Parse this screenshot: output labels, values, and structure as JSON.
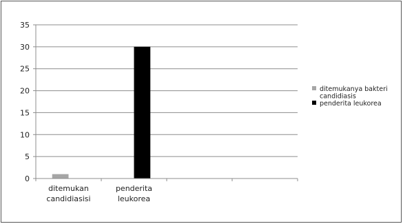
{
  "chart_data": {
    "type": "bar",
    "categories": [
      [
        "ditemukan",
        "candidiasisi"
      ],
      [
        "penderita",
        "leukorea"
      ],
      [],
      []
    ],
    "series": [
      {
        "name": "ditemukanya bakteri candidiasis",
        "values": [
          1,
          null,
          null,
          null
        ],
        "color": "#a6a6a6"
      },
      {
        "name": "penderita leukorea",
        "values": [
          null,
          30,
          null,
          null
        ],
        "color": "#000000"
      }
    ],
    "ylim": [
      0,
      35
    ],
    "yticks": [
      0,
      5,
      10,
      15,
      20,
      25,
      30,
      35
    ],
    "grid": true,
    "legend_position": "right",
    "legend_labels": [
      [
        "ditemukanya bakteri",
        "candidiasis"
      ],
      [
        "penderita leukorea"
      ]
    ],
    "title": "",
    "xlabel": "",
    "ylabel": ""
  }
}
